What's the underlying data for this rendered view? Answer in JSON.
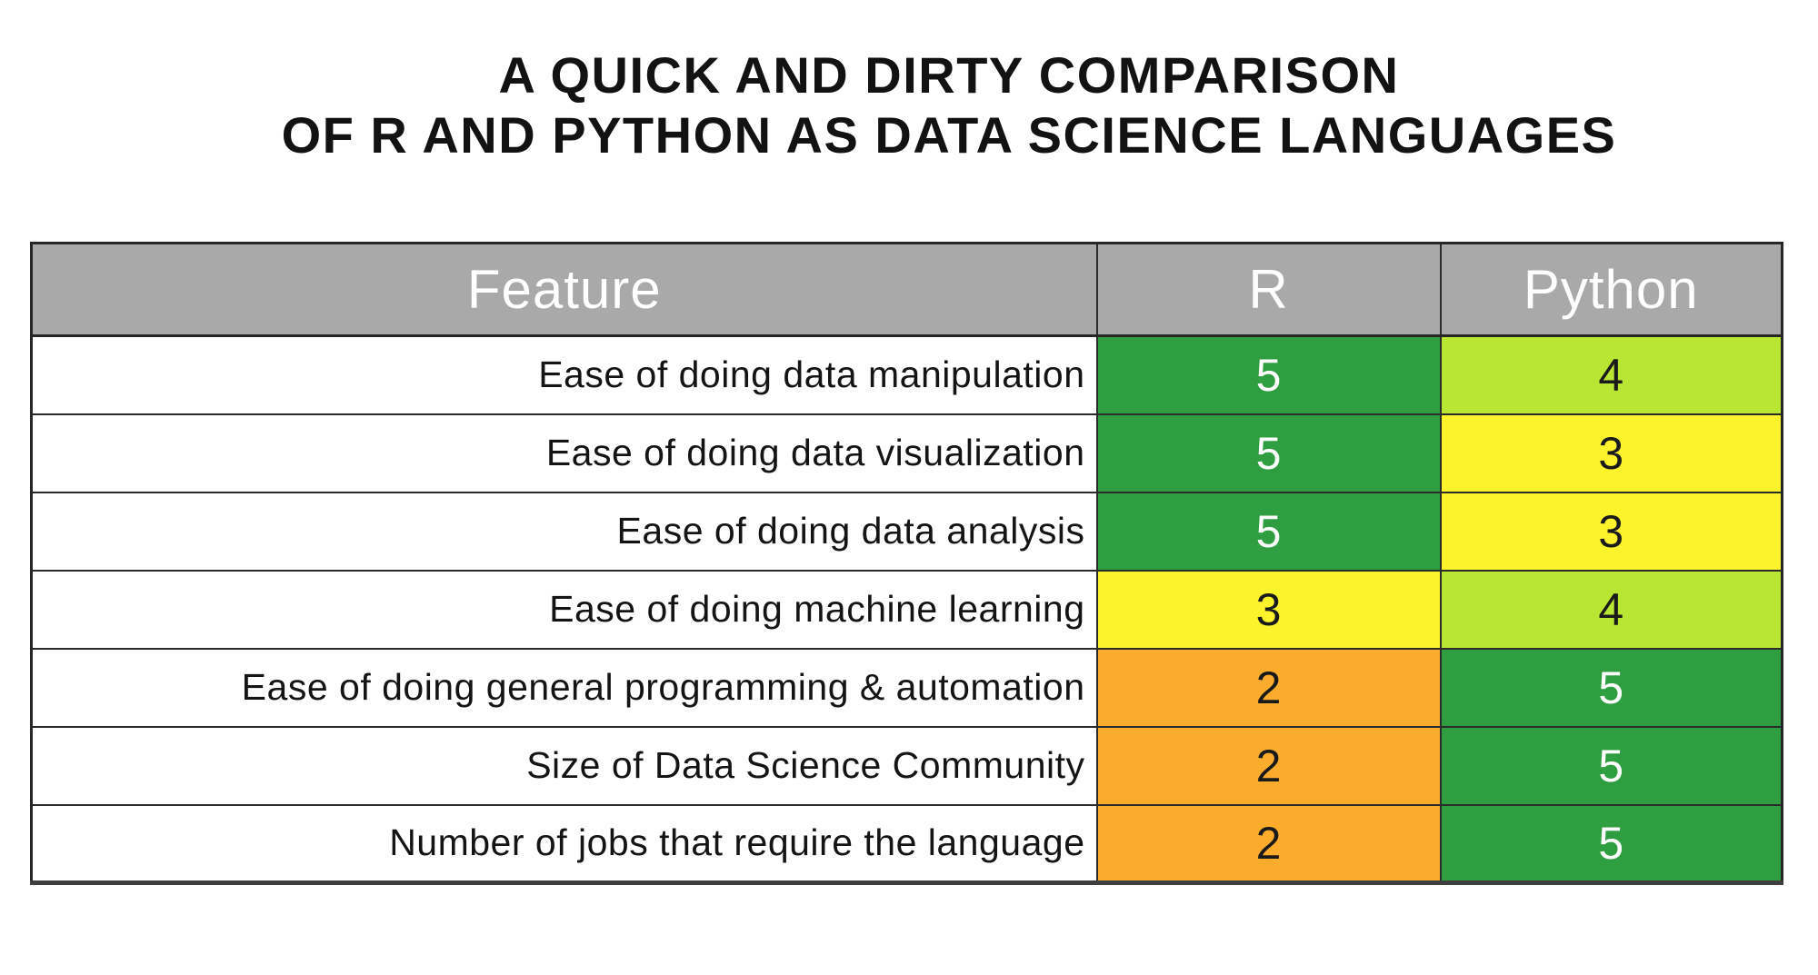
{
  "title": {
    "line1": "A QUICK AND DIRTY COMPARISON",
    "line2": "OF R AND PYTHON AS DATA SCIENCE LANGUAGES"
  },
  "table": {
    "headers": [
      "Feature",
      "R",
      "Python"
    ],
    "rows": [
      {
        "feature": "Ease of doing data manipulation",
        "r": "5",
        "python": "4"
      },
      {
        "feature": "Ease of doing data visualization",
        "r": "5",
        "python": "3"
      },
      {
        "feature": "Ease of doing data analysis",
        "r": "5",
        "python": "3"
      },
      {
        "feature": "Ease of doing machine learning",
        "r": "3",
        "python": "4"
      },
      {
        "feature": "Ease of doing general programming & automation",
        "r": "2",
        "python": "5"
      },
      {
        "feature": "Size of Data Science Community",
        "r": "2",
        "python": "5"
      },
      {
        "feature": "Number of jobs that require the language",
        "r": "2",
        "python": "5"
      }
    ]
  },
  "colors": {
    "header_bg": "#a9a9a9",
    "header_text": "#ffffff",
    "border": "#2b2b2b",
    "score_styles": {
      "5": {
        "bg": "#2f9e41",
        "text": "#ffffff"
      },
      "4": {
        "bg": "#b9e533",
        "text": "#1a1a1a"
      },
      "3": {
        "bg": "#fdf32d",
        "text": "#1a1a1a"
      },
      "2": {
        "bg": "#fbac2d",
        "text": "#1a1a1a"
      }
    }
  },
  "chart_data": {
    "type": "table",
    "title": "A QUICK AND DIRTY COMPARISON OF R AND PYTHON AS DATA SCIENCE LANGUAGES",
    "columns": [
      "Feature",
      "R",
      "Python"
    ],
    "rows": [
      [
        "Ease of doing data manipulation",
        5,
        4
      ],
      [
        "Ease of doing data visualization",
        5,
        3
      ],
      [
        "Ease of doing data analysis",
        5,
        3
      ],
      [
        "Ease of doing machine learning",
        3,
        4
      ],
      [
        "Ease of doing general programming & automation",
        2,
        5
      ],
      [
        "Size of Data Science Community",
        2,
        5
      ],
      [
        "Number of jobs that require the language",
        2,
        5
      ]
    ],
    "value_range": [
      1,
      5
    ],
    "color_coding": {
      "5": "#2f9e41",
      "4": "#b9e533",
      "3": "#fdf32d",
      "2": "#fbac2d"
    },
    "layout": "score cells color-coded by value; dark-green cells use white numerals, others black"
  }
}
